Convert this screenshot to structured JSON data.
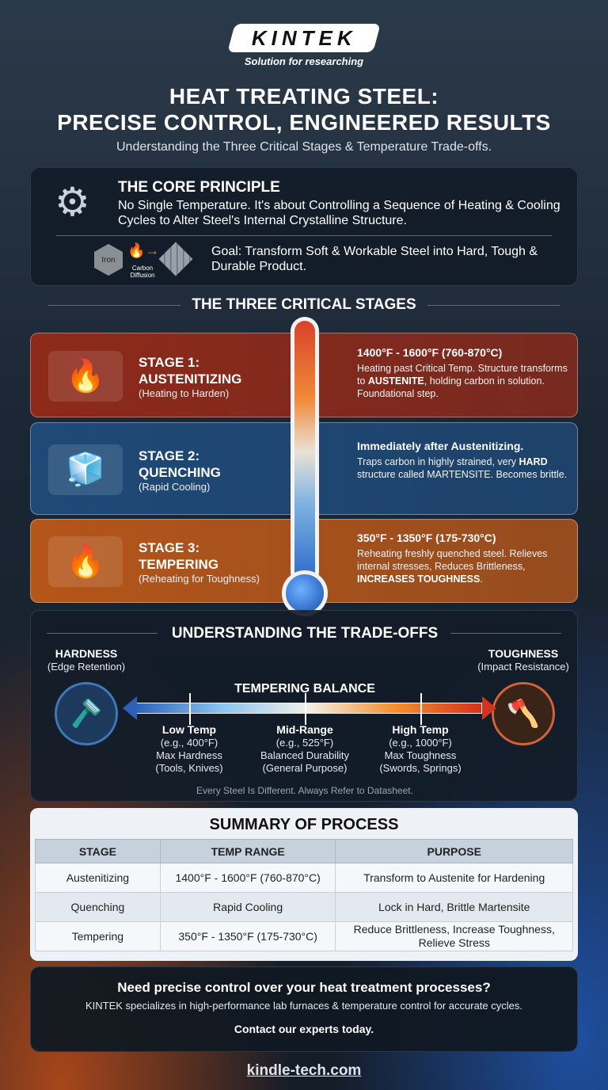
{
  "brand": {
    "logo": "KINTEK",
    "tagline": "Solution for researching"
  },
  "header": {
    "title_line1": "HEAT TREATING STEEL:",
    "title_line2": "PRECISE CONTROL, ENGINEERED RESULTS",
    "subtitle": "Understanding the Three Critical Stages & Temperature Trade-offs."
  },
  "core": {
    "title": "THE CORE PRINCIPLE",
    "text": "No Single Temperature. It's about Controlling a Sequence of Heating & Cooling Cycles to Alter Steel's Internal Crystalline Structure.",
    "icon_labels": {
      "iron": "Iron",
      "diffusion": "Carbon Diffusion"
    },
    "goal": "Goal: Transform Soft & Workable Steel into Hard, Tough & Durable Product."
  },
  "stages_title": "THE THREE CRITICAL STAGES",
  "stages": [
    {
      "num": "STAGE 1:",
      "name": "AUSTENITIZING",
      "sub": "(Heating to Harden)",
      "range": "1400°F - 1600°F (760-870°C)",
      "desc1": "Heating past Critical Temp. Structure transforms to ",
      "bold1": "AUSTENITE",
      "desc2": ", holding carbon in solution. Foundational step.",
      "color": "#8e2a1a",
      "icon": "furnace-icon"
    },
    {
      "num": "STAGE 2:",
      "name": "QUENCHING",
      "sub": "(Rapid Cooling)",
      "range": "Immediately after Austenitizing.",
      "desc1": "Traps carbon in highly strained, very ",
      "bold1": "HARD",
      "desc2": " structure called MARTENSITE. Becomes brittle.",
      "color": "#1f4a78",
      "icon": "quench-tank-icon"
    },
    {
      "num": "STAGE 3:",
      "name": "TEMPERING",
      "sub": "(Reheating for Toughness)",
      "range": "350°F - 1350°F (175-730°C)",
      "desc1": "Reheating freshly quenched steel. Relieves internal stresses, Reduces Brittleness, ",
      "bold1": "INCREASES TOUGHNESS",
      "desc2": ".",
      "color": "#b5561a",
      "icon": "burner-icon"
    }
  ],
  "tradeoffs": {
    "title": "UNDERSTANDING THE TRADE-OFFS",
    "left": {
      "title": "HARDNESS",
      "sub": "(Edge Retention)"
    },
    "right": {
      "title": "TOUGHNESS",
      "sub": "(Impact Resistance)"
    },
    "balance": "TEMPERING BALANCE",
    "points": [
      {
        "name": "Low Temp",
        "ex": "(e.g., 400°F)",
        "effect": "Max Hardness",
        "use": "(Tools, Knives)"
      },
      {
        "name": "Mid-Range",
        "ex": "(e.g., 525°F)",
        "effect": "Balanced Durability",
        "use": "(General Purpose)"
      },
      {
        "name": "High Temp",
        "ex": "(e.g., 1000°F)",
        "effect": "Max Toughness",
        "use": "(Swords, Springs)"
      }
    ],
    "note": "Every Steel Is Different. Always Refer to Datasheet."
  },
  "summary": {
    "title": "SUMMARY OF PROCESS",
    "headers": [
      "STAGE",
      "TEMP RANGE",
      "PURPOSE"
    ],
    "rows": [
      [
        "Austenitizing",
        "1400°F - 1600°F (760-870°C)",
        "Transform to Austenite for Hardening"
      ],
      [
        "Quenching",
        "Rapid Cooling",
        "Lock in Hard, Brittle Martensite"
      ],
      [
        "Tempering",
        "350°F - 1350°F (175-730°C)",
        "Reduce Brittleness, Increase Toughness, Relieve Stress"
      ]
    ]
  },
  "cta": {
    "title": "Need precise control over your heat treatment processes?",
    "text": "KINTEK specializes in high-performance lab furnaces & temperature control for accurate cycles.",
    "action": "Contact our experts today."
  },
  "footer": {
    "link": "kindle-tech.com"
  }
}
